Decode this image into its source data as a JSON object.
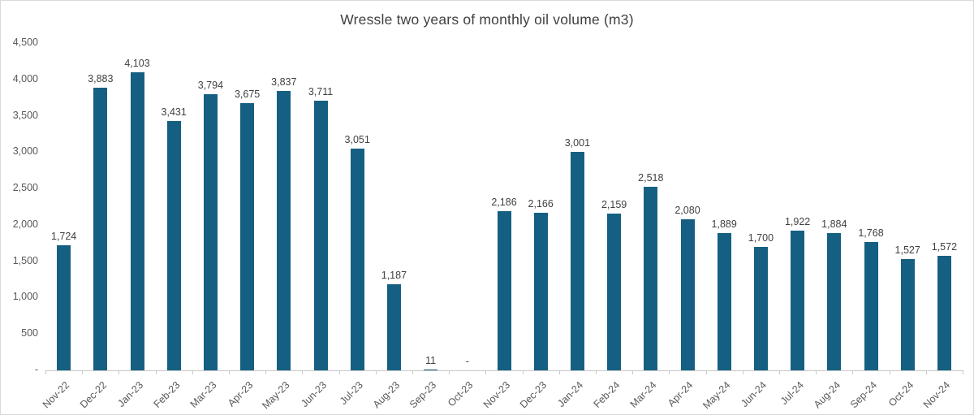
{
  "chart_data": {
    "type": "bar",
    "title": "Wressle two years of monthly oil volume (m3)",
    "categories": [
      "Nov-22",
      "Dec-22",
      "Jan-23",
      "Feb-23",
      "Mar-23",
      "Apr-23",
      "May-23",
      "Jun-23",
      "Jul-23",
      "Aug-23",
      "Sep-23",
      "Oct-23",
      "Nov-23",
      "Dec-23",
      "Jan-24",
      "Feb-24",
      "Mar-24",
      "Apr-24",
      "May-24",
      "Jun-24",
      "Jul-24",
      "Aug-24",
      "Sep-24",
      "Oct-24",
      "Nov-24"
    ],
    "values": [
      1724,
      3883,
      4103,
      3431,
      3794,
      3675,
      3837,
      3711,
      3051,
      1187,
      11,
      0,
      2186,
      2166,
      3001,
      2159,
      2518,
      2080,
      1889,
      1700,
      1922,
      1884,
      1768,
      1527,
      1572
    ],
    "value_labels": [
      "1,724",
      "3,883",
      "4,103",
      "3,431",
      "3,794",
      "3,675",
      "3,837",
      "3,711",
      "3,051",
      "1,187",
      "11",
      "-",
      "2,186",
      "2,166",
      "3,001",
      "2,159",
      "2,518",
      "2,080",
      "1,889",
      "1,700",
      "1,922",
      "1,884",
      "1,768",
      "1,527",
      "1,572"
    ],
    "xlabel": "",
    "ylabel": "",
    "ylim": [
      0,
      4500
    ],
    "y_tick_labels": [
      "4,500",
      "4,000",
      "3,500",
      "3,000",
      "2,500",
      "2,000",
      "1,500",
      "1,000",
      "500",
      "-"
    ],
    "y_tick_values": [
      4500,
      4000,
      3500,
      3000,
      2500,
      2000,
      1500,
      1000,
      500,
      0
    ],
    "grid": false,
    "legend_position": "none",
    "bar_color": "#156082",
    "data_label_color": "#404040",
    "axis_text_color": "#595959",
    "title_color": "#404040"
  }
}
